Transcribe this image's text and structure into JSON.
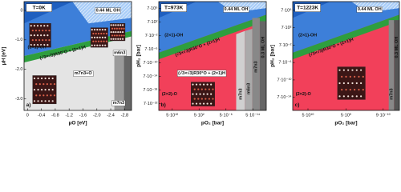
{
  "chart_data": [
    {
      "type": "phase-diagram",
      "title": "T=0K",
      "panel_label": "a)",
      "xlabel": "μO [eV]",
      "ylabel": "μH [eV]",
      "xlim": [
        0.1,
        -3.0
      ],
      "ylim": [
        -3.4,
        0.3
      ],
      "xticks": [
        0,
        -0.4,
        -0.8,
        -1.2,
        -1.6,
        {
          "value": -2.0,
          "label": "-2.0"
        },
        -2.4,
        -2.8
      ],
      "yticks": [
        0,
        {
          "value": -1.0,
          "label": "-1.0"
        },
        {
          "value": -2.0,
          "label": "-2.0"
        },
        {
          "value": -3.0,
          "label": "-3.0"
        }
      ],
      "phases": [
        "0.44 ML OH",
        "(2×1)-OH",
        "(√3×√3)R30°O + (2×1)H",
        "m7n3+O",
        "m6n3",
        "m7n3"
      ]
    },
    {
      "type": "phase-diagram",
      "title": "T=973K",
      "panel_label": "b)",
      "xlabel": "pO₂ [bar]",
      "ylabel": "pH₂ [bar]",
      "log_scale": true,
      "xlim": [
        500000000000000.0,
        5e-18
      ],
      "ylim": [
        7e-24,
        700000000.0
      ],
      "xticks": [
        {
          "value": 50000000000.0,
          "label": "5·10¹⁰"
        },
        {
          "value": 500.0,
          "label": "5·10²"
        },
        {
          "value": 5e-06,
          "label": "5·10⁻⁶"
        },
        {
          "value": 5e-14,
          "label": "5·10⁻¹⁴"
        }
      ],
      "yticks": [
        {
          "value": 7000000.0,
          "label": "7·10⁶"
        },
        {
          "value": 700.0,
          "label": "7·10²"
        },
        {
          "value": 0.07,
          "label": "7·10⁻²"
        },
        {
          "value": 7e-06,
          "label": "7·10⁻⁶"
        },
        {
          "value": 7e-10,
          "label": "7·10⁻¹⁰"
        },
        {
          "value": 7e-14,
          "label": "7·10⁻¹⁴"
        },
        {
          "value": 7e-18,
          "label": "7·10⁻¹⁸"
        },
        {
          "value": 7e-22,
          "label": "7·10⁻²²"
        }
      ],
      "phases": [
        "0.44 ML OH",
        "(2×1)-OH",
        "(√3×√3)R30°O + (2×1)H",
        "(√3×√3)R30°O + (2×1)H",
        "(2×2)-O",
        "m7n3",
        "m6n3",
        "m7n3",
        "0.3 ML OH"
      ]
    },
    {
      "type": "phase-diagram",
      "title": "T=1223K",
      "panel_label": "c)",
      "xlabel": "pO₂ [bar]",
      "ylabel": "pH₂ [bar]",
      "log_scale": true,
      "xlim": [
        500000000000000.0,
        5e-14
      ],
      "ylim": [
        7e-17,
        700000000.0
      ],
      "xticks": [
        {
          "value": 50000000000.0,
          "label": "5·10¹⁰"
        },
        {
          "value": 5.0,
          "label": "5·10⁰"
        },
        {
          "value": 9e-10,
          "label": "9·10⁻¹⁰"
        }
      ],
      "yticks": [
        {
          "value": 7000000.0,
          "label": "7·10⁶"
        },
        {
          "value": 700.0,
          "label": "7·10²"
        },
        {
          "value": 0.07,
          "label": "7·10⁻²"
        },
        {
          "value": 7e-06,
          "label": "7·10⁻⁶"
        },
        {
          "value": 7e-10,
          "label": "7·10⁻¹⁰"
        },
        {
          "value": 7e-14,
          "label": "7·10⁻¹⁴"
        }
      ],
      "phases": [
        "0.44 ML OH",
        "(2×1)-OH",
        "(√3×√3)R30°O + (2×1)H",
        "(2×2)-O",
        "m7n3",
        "0.3 ML OH"
      ]
    }
  ]
}
